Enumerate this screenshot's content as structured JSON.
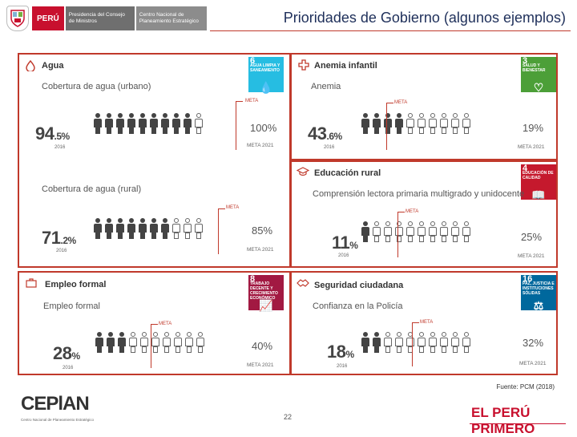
{
  "header": {
    "peru": "PERÚ",
    "pcm": "Presidencia del Consejo de Ministros",
    "ceplan": "Centro Nacional de Planeamiento Estratégico",
    "title": "Prioridades de Gobierno (algunos ejemplos)"
  },
  "panels": {
    "agua": {
      "title": "Agua",
      "sdg": {
        "number": "6",
        "label": "AGUA LIMPIA Y SANEAMIENTO",
        "color": "#26bde2",
        "icon": "water-drop"
      },
      "urbano": {
        "subtitle": "Cobertura de agua (urbano)",
        "value_int": "94",
        "value_dec": ".5",
        "pct": "%",
        "year": "2016",
        "meta_tag": "META",
        "target": "100%",
        "meta_label": "META 2021",
        "filled_fraction": 0.945
      },
      "rural": {
        "subtitle": "Cobertura de agua (rural)",
        "value_int": "71",
        "value_dec": ".2",
        "pct": "%",
        "year": "2016",
        "meta_tag": "META",
        "target": "85%",
        "meta_label": "META 2021",
        "filled_fraction": 0.712
      }
    },
    "anemia": {
      "title": "Anemia infantil",
      "subtitle": "Anemia",
      "sdg": {
        "number": "3",
        "label": "SALUD Y BIENESTAR",
        "color": "#4c9f38",
        "icon": "heartbeat"
      },
      "value_int": "43",
      "value_dec": ".6",
      "pct": "%",
      "year": "2016",
      "meta_tag": "META",
      "target": "19%",
      "meta_label": "META 2021",
      "filled_fraction": 0.436
    },
    "educacion": {
      "title": "Educación rural",
      "subtitle": "Comprensión lectora primaria multigrado y unidocente",
      "sdg": {
        "number": "4",
        "label": "EDUCACIÓN DE CALIDAD",
        "color": "#c5192d",
        "icon": "book"
      },
      "value_int": "11",
      "value_dec": "",
      "pct": "%",
      "year": "2016",
      "meta_tag": "META",
      "target": "25%",
      "meta_label": "META 2021",
      "filled_fraction": 0.11
    },
    "empleo": {
      "title": "Empleo formal",
      "subtitle": "Empleo formal",
      "sdg": {
        "number": "8",
        "label": "TRABAJO DECENTE Y CRECIMIENTO ECONÓMICO",
        "color": "#a21942",
        "icon": "growth-chart"
      },
      "value_int": "28",
      "value_dec": "",
      "pct": "%",
      "year": "2016",
      "meta_tag": "META",
      "target": "40%",
      "meta_label": "META 2021",
      "filled_fraction": 0.28
    },
    "seguridad": {
      "title": "Seguridad ciudadana",
      "subtitle": "Confianza en la Policía",
      "sdg": {
        "number": "16",
        "label": "PAZ, JUSTICIA E INSTITUCIONES SÓLIDAS",
        "color": "#00689d",
        "icon": "dove"
      },
      "value_int": "18",
      "value_dec": "",
      "pct": "%",
      "year": "2016",
      "meta_tag": "META",
      "target": "32%",
      "meta_label": "META 2021",
      "filled_fraction": 0.18
    }
  },
  "footer": {
    "source": "Fuente: PCM (2018)",
    "page": "22",
    "ceplan_logo": "CEPlAN",
    "ceplan_sub": "Centro Nacional de Planeamiento Estratégico",
    "elperu": "EL PERÚ PRIMERO"
  }
}
